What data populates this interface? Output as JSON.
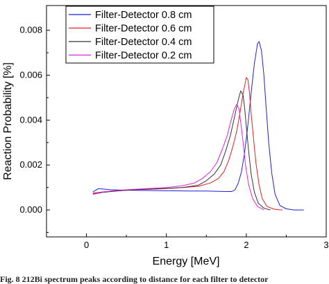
{
  "chart_data": {
    "type": "line",
    "xlabel": "Energy [MeV]",
    "ylabel": "Reaction Probability [%]",
    "xlim": [
      -0.5,
      3.0
    ],
    "ylim": [
      -0.0012,
      0.0091
    ],
    "x_ticks": [
      "0",
      "1",
      "2",
      "3"
    ],
    "y_ticks": [
      "0.000",
      "0.002",
      "0.004",
      "0.006",
      "0.008"
    ],
    "x_tick_values": [
      0,
      1,
      2,
      3
    ],
    "y_tick_values": [
      0,
      0.002,
      0.004,
      0.006,
      0.008
    ],
    "legend_position": "top-left",
    "series": [
      {
        "name": "Filter-Detector 0.8 cm",
        "color": "#1f1fd6",
        "x": [
          0.08,
          0.15,
          0.3,
          0.5,
          0.7,
          0.9,
          1.1,
          1.3,
          1.5,
          1.65,
          1.75,
          1.82,
          1.86,
          1.9,
          1.94,
          1.98,
          2.02,
          2.06,
          2.1,
          2.14,
          2.16,
          2.19,
          2.22,
          2.25,
          2.28,
          2.32,
          2.36,
          2.42,
          2.5,
          2.6,
          2.72
        ],
        "y": [
          0.0008,
          0.00095,
          0.0009,
          0.00088,
          0.00087,
          0.00086,
          0.00085,
          0.00084,
          0.00084,
          0.00083,
          0.00082,
          0.00082,
          0.0009,
          0.0012,
          0.0017,
          0.0026,
          0.0038,
          0.0052,
          0.0065,
          0.0074,
          0.0075,
          0.0071,
          0.006,
          0.0045,
          0.003,
          0.0016,
          0.0007,
          0.0002,
          5e-05,
          0.0,
          0.0
        ]
      },
      {
        "name": "Filter-Detector 0.6 cm",
        "color": "#e02020",
        "x": [
          0.08,
          0.2,
          0.4,
          0.6,
          0.8,
          1.0,
          1.2,
          1.4,
          1.55,
          1.65,
          1.72,
          1.78,
          1.83,
          1.88,
          1.92,
          1.96,
          2.0,
          2.02,
          2.04,
          2.06,
          2.09,
          2.12,
          2.16,
          2.2,
          2.26,
          2.35,
          2.45
        ],
        "y": [
          0.00075,
          0.0008,
          0.00085,
          0.0009,
          0.00092,
          0.00095,
          0.001,
          0.00105,
          0.0012,
          0.0014,
          0.0017,
          0.0022,
          0.0028,
          0.0035,
          0.0043,
          0.0052,
          0.0059,
          0.0058,
          0.0052,
          0.0043,
          0.0032,
          0.0021,
          0.0011,
          0.0005,
          0.00015,
          3e-05,
          0.0
        ]
      },
      {
        "name": "Filter-Detector 0.4 cm",
        "color": "#333333",
        "x": [
          0.08,
          0.2,
          0.4,
          0.6,
          0.8,
          1.0,
          1.2,
          1.4,
          1.5,
          1.6,
          1.68,
          1.74,
          1.8,
          1.85,
          1.9,
          1.93,
          1.96,
          1.98,
          2.0,
          2.03,
          2.06,
          2.1,
          2.15,
          2.22,
          2.3
        ],
        "y": [
          0.0007,
          0.00078,
          0.00085,
          0.0009,
          0.00093,
          0.00096,
          0.001,
          0.0011,
          0.0013,
          0.0016,
          0.002,
          0.0026,
          0.0033,
          0.0041,
          0.0049,
          0.0053,
          0.0051,
          0.0045,
          0.0037,
          0.0026,
          0.0016,
          0.0008,
          0.0003,
          8e-05,
          0.0
        ]
      },
      {
        "name": "Filter-Detector 0.2 cm",
        "color": "#e020e0",
        "x": [
          0.08,
          0.2,
          0.4,
          0.6,
          0.8,
          1.0,
          1.2,
          1.35,
          1.45,
          1.55,
          1.63,
          1.7,
          1.76,
          1.81,
          1.85,
          1.88,
          1.91,
          1.93,
          1.96,
          1.99,
          2.03,
          2.08,
          2.14,
          2.22
        ],
        "y": [
          0.00072,
          0.0008,
          0.00088,
          0.00092,
          0.00096,
          0.001,
          0.00108,
          0.0012,
          0.0014,
          0.0017,
          0.0021,
          0.0027,
          0.0033,
          0.004,
          0.0045,
          0.0047,
          0.0045,
          0.0039,
          0.003,
          0.002,
          0.0011,
          0.0005,
          0.00015,
          0.0
        ]
      }
    ]
  },
  "caption": {
    "prefix": "Fig. 8",
    "text": "212Bi spectrum peaks according to distance for each filter to detector"
  }
}
